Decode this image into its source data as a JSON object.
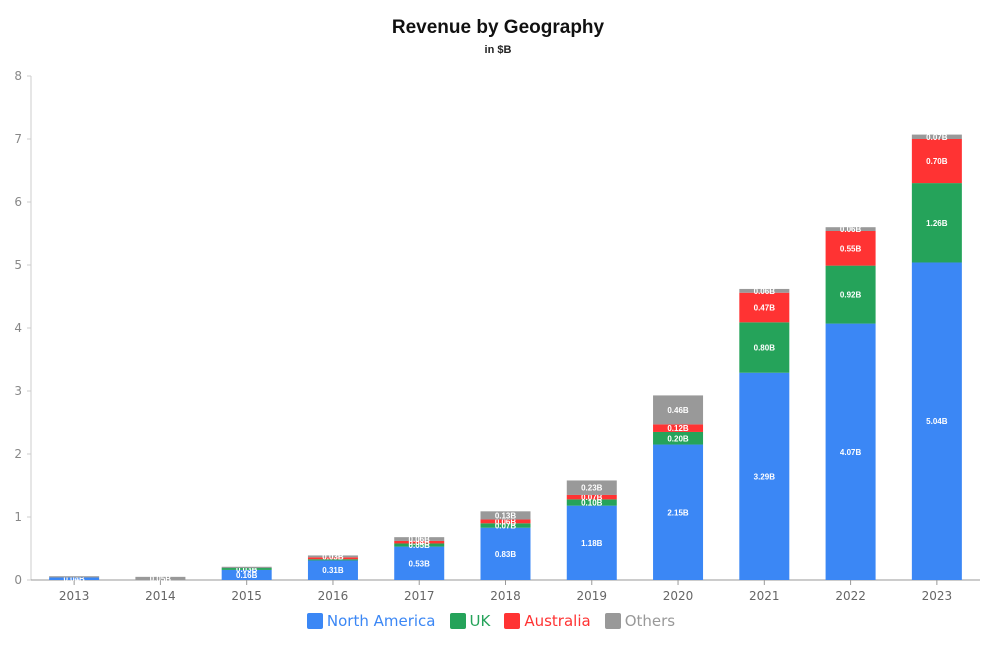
{
  "chart_data": {
    "type": "bar",
    "stacked": true,
    "title": "Revenue by Geography",
    "subtitle": "in $B",
    "xlabel": "",
    "ylabel": "",
    "ylim": [
      0,
      8
    ],
    "yticks": [
      "0",
      "1",
      "2",
      "3",
      "4",
      "5",
      "6",
      "7",
      "8"
    ],
    "categories": [
      "2013",
      "2014",
      "2015",
      "2016",
      "2017",
      "2018",
      "2019",
      "2020",
      "2021",
      "2022",
      "2023"
    ],
    "series": [
      {
        "name": "North America",
        "color": "#3b87f5",
        "values": [
          0.04,
          0.0,
          0.16,
          0.31,
          0.53,
          0.83,
          1.18,
          2.15,
          3.29,
          4.07,
          5.04
        ],
        "labels": [
          "0.04B",
          "",
          "0.16B",
          "0.31B",
          "0.53B",
          "0.83B",
          "1.18B",
          "2.15B",
          "3.29B",
          "4.07B",
          "5.04B"
        ]
      },
      {
        "name": "UK",
        "color": "#25a35a",
        "values": [
          0.0,
          0.0,
          0.03,
          0.02,
          0.05,
          0.07,
          0.1,
          0.2,
          0.8,
          0.92,
          1.26
        ],
        "labels": [
          "",
          "",
          "0.03B",
          "",
          "0.05B",
          "0.07B",
          "0.10B",
          "0.20B",
          "0.80B",
          "0.92B",
          "1.26B"
        ]
      },
      {
        "name": "Australia",
        "color": "#ff3333",
        "values": [
          0.0,
          0.0,
          0.0,
          0.03,
          0.04,
          0.06,
          0.07,
          0.12,
          0.47,
          0.55,
          0.7
        ],
        "labels": [
          "",
          "",
          "",
          "",
          "0.04B",
          "0.06B",
          "0.07B",
          "0.12B",
          "0.47B",
          "0.55B",
          "0.70B"
        ]
      },
      {
        "name": "Others",
        "color": "#999999",
        "values": [
          0.02,
          0.05,
          0.02,
          0.03,
          0.06,
          0.13,
          0.23,
          0.46,
          0.06,
          0.06,
          0.07
        ],
        "labels": [
          "",
          "0.05B",
          "",
          "0.03B",
          "0.06B",
          "0.13B",
          "0.23B",
          "0.46B",
          "0.06B",
          "0.06B",
          "0.07B"
        ]
      }
    ],
    "legend_position": "bottom-center",
    "grid": false
  }
}
